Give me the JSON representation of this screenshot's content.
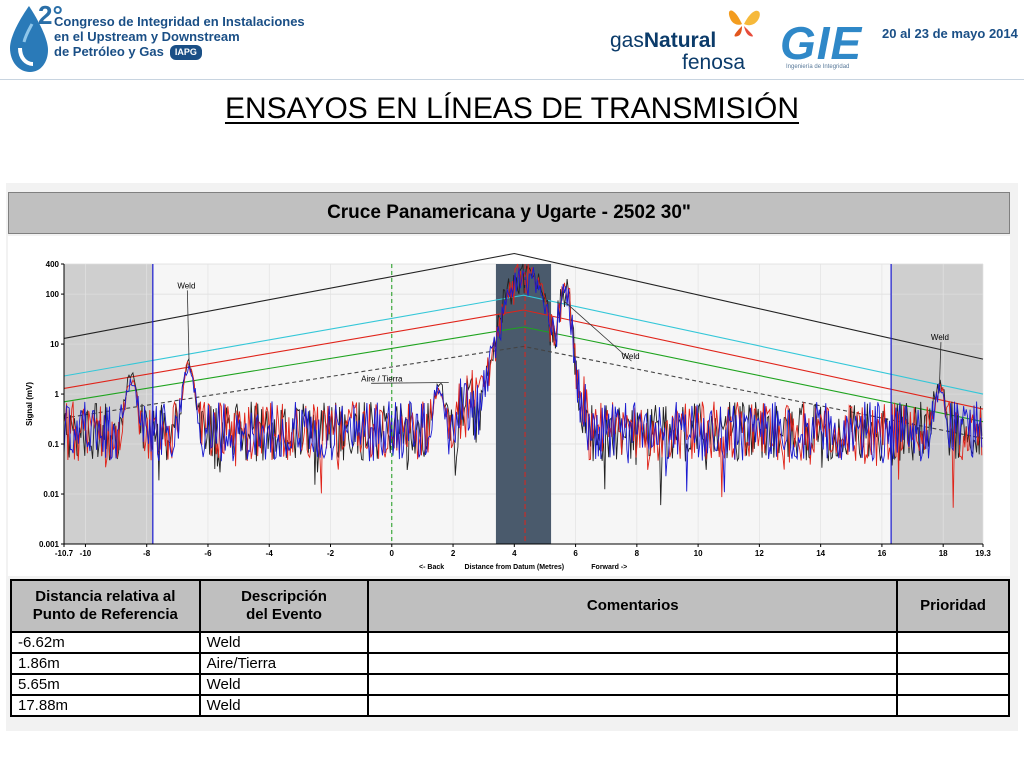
{
  "header": {
    "conf_ordinal": "2°",
    "conf_line1": "Congreso de Integridad en Instalaciones",
    "conf_line2": "en el Upstream y Downstream",
    "conf_line3": "de Petróleo y Gas",
    "conf_org": "IAPG",
    "sponsor1_line1_a": "gas",
    "sponsor1_line1_b": "Natural",
    "sponsor1_line2": "fenosa",
    "sponsor2_word": "GIE",
    "sponsor2_sub": "Ingeniería de Integridad",
    "date": "20 al 23 de mayo 2014"
  },
  "slide_title": "ENSAYOS EN LÍNEAS DE TRANSMISIÓN",
  "chart_title": "Cruce Panamericana y Ugarte - 2502 30\"",
  "colors": {
    "cyan": "#34c7d8",
    "red": "#e0241a",
    "green": "#1fa31f",
    "black": "#222222",
    "blue": "#1a1ad0",
    "shade": "#cfcfcf",
    "band": "#4a5a6c"
  },
  "chart_data": {
    "type": "line",
    "xlim": [
      -10.7,
      19.3
    ],
    "ylim": [
      0.001,
      400
    ],
    "y_scale": "log",
    "x_ticks": [
      "-10.7",
      "-10",
      "-8",
      "-6",
      "-4",
      "-2",
      "0",
      "2",
      "4",
      "6",
      "8",
      "10",
      "12",
      "14",
      "16",
      "18",
      "19.3"
    ],
    "x_tick_values": [
      -10.7,
      -10,
      -8,
      -6,
      -4,
      -2,
      0,
      2,
      4,
      6,
      8,
      10,
      12,
      14,
      16,
      18,
      19.3
    ],
    "y_ticks": [
      "400",
      "100",
      "10",
      "1",
      "0.1",
      "0.01",
      "0.001"
    ],
    "y_tick_values": [
      400,
      100,
      10,
      1,
      0.1,
      0.01,
      0.001
    ],
    "ylabel": "Signal (mV)",
    "xlabel_left": "<- Back",
    "xlabel_center": "Distance from Datum (Metres)",
    "xlabel_right": "Forward ->",
    "shaded_left": [
      -10.7,
      -7.8
    ],
    "shaded_right": [
      16.3,
      19.3
    ],
    "band_x": [
      3.4,
      5.2
    ],
    "datum_x": 0,
    "center_x": 4.35,
    "blue_markers": [
      -7.8,
      16.3
    ],
    "threshold_lines": [
      {
        "name": "black",
        "points": [
          [
            -10.7,
            13
          ],
          [
            4.0,
            650
          ],
          [
            19.3,
            5
          ]
        ]
      },
      {
        "name": "cyan",
        "points": [
          [
            -10.7,
            2.3
          ],
          [
            4.3,
            95
          ],
          [
            19.3,
            1.0
          ]
        ]
      },
      {
        "name": "red",
        "points": [
          [
            -10.7,
            1.3
          ],
          [
            4.3,
            48
          ],
          [
            19.3,
            0.5
          ]
        ]
      },
      {
        "name": "green",
        "points": [
          [
            -10.7,
            0.7
          ],
          [
            4.3,
            22
          ],
          [
            19.3,
            0.28
          ]
        ]
      },
      {
        "name": "black-dashed",
        "points": [
          [
            -10.7,
            0.33
          ],
          [
            4.3,
            9
          ],
          [
            19.3,
            0.13
          ]
        ]
      }
    ],
    "annotations": [
      {
        "text": "Weld",
        "x": -7.0,
        "y": 130,
        "target_x": -6.62,
        "target_y": 5
      },
      {
        "text": "Aire / Tierra",
        "x": -1.0,
        "y": 1.8,
        "target_x": 1.86,
        "target_y": 1.7
      },
      {
        "text": "Weld",
        "x": 7.5,
        "y": 5,
        "target_x": 5.65,
        "target_y": 70
      },
      {
        "text": "Weld",
        "x": 17.6,
        "y": 12,
        "target_x": 17.88,
        "target_y": 1.6
      }
    ],
    "peaks": [
      {
        "x": -6.62,
        "y": 5
      },
      {
        "x": -8.5,
        "y": 2.5
      },
      {
        "x": 1.55,
        "y": 1.6
      },
      {
        "x": 5.65,
        "y": 70
      },
      {
        "x": 17.88,
        "y": 1.6
      },
      {
        "x": 4.35,
        "y": 140
      }
    ]
  },
  "table": {
    "headers": [
      "Distancia relativa al Punto de Referencia",
      "Descripción del Evento",
      "Comentarios",
      "Prioridad"
    ],
    "header_lines": [
      [
        "Distancia relativa al",
        "Punto de Referencia"
      ],
      [
        "Descripción",
        "del Evento"
      ],
      [
        "Comentarios"
      ],
      [
        "Prioridad"
      ]
    ],
    "rows": [
      [
        "-6.62m",
        "Weld",
        "",
        ""
      ],
      [
        "1.86m",
        "Aire/Tierra",
        "",
        ""
      ],
      [
        "5.65m",
        "Weld",
        "",
        ""
      ],
      [
        "17.88m",
        "Weld",
        "",
        ""
      ]
    ]
  }
}
